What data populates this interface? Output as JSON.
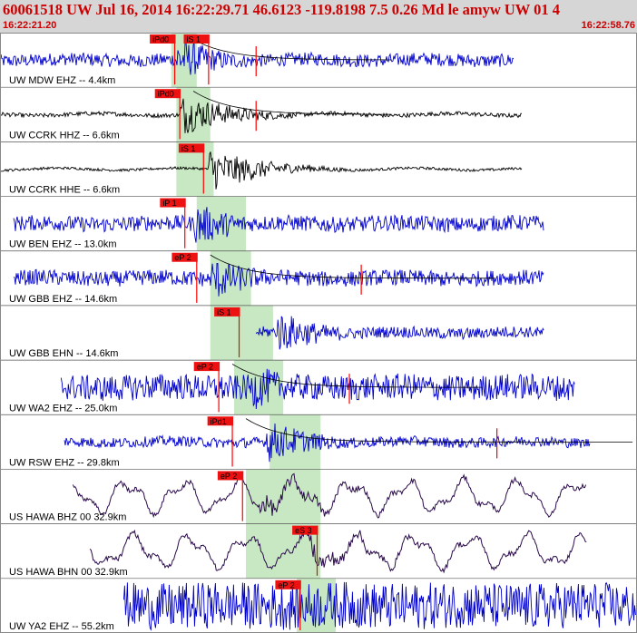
{
  "header": {
    "title": "60061518 UW Jul 16, 2014 16:22:29.71   46.6123 -119.8198  7.5 0.26 Md le amyw UW 01   4",
    "time_start": "16:22:21.20",
    "time_end": "16:22:58.76"
  },
  "colors": {
    "header_bg": "#d6d6d6",
    "header_text": "#cc0000",
    "trace_blue": "#0000cc",
    "trace_black": "#000000",
    "trace_purple": "#2a0a4a",
    "pick_red": "#ff0000",
    "pick_box": "#ee1111",
    "pick_text": "#000000",
    "window_green": "#c7e8c2",
    "coda_curve": "#000000",
    "separator": "#555555"
  },
  "chart_data": {
    "type": "line",
    "x_range_seconds": [
      21.2,
      58.76
    ],
    "time_labels": [
      "16:22:21.20",
      "16:22:58.76"
    ],
    "traces": [
      {
        "label": "UW MDW EHZ -- 4.4km",
        "color": "blue",
        "start": 21.2,
        "end": 51.5,
        "amp": 0.25,
        "onset": 31.5,
        "peak": 0.9,
        "style": "hf",
        "picks": [
          {
            "text": "iPd0",
            "time": 31.5
          },
          {
            "text": "iS 1",
            "time": 33.5
          }
        ],
        "green": [
          31.3,
          32.8
        ],
        "coda": true,
        "coda_end": 36.3
      },
      {
        "label": "UW CCRK HHZ -- 6.6km",
        "color": "black",
        "start": 21.2,
        "end": 52.0,
        "amp": 0.08,
        "onset": 31.8,
        "peak": 0.85,
        "style": "hf",
        "picks": [
          {
            "text": "iPd0",
            "time": 31.8
          }
        ],
        "green": [
          31.6,
          33.6
        ],
        "coda": true,
        "coda_end": 36.3
      },
      {
        "label": "UW CCRK HHE -- 6.6km",
        "color": "black",
        "start": 21.2,
        "end": 52.0,
        "amp": 0.05,
        "onset": 33.5,
        "peak": 0.9,
        "style": "hf",
        "picks": [
          {
            "text": "iS 1",
            "time": 33.2
          }
        ],
        "green": [
          31.6,
          33.8
        ],
        "coda": false
      },
      {
        "label": "UW BEN EHZ -- 13.0km",
        "color": "blue",
        "start": 22.0,
        "end": 53.3,
        "amp": 0.3,
        "onset": 32.7,
        "peak": 0.85,
        "style": "hf",
        "picks": [
          {
            "text": "iP 1",
            "time": 32.1
          }
        ],
        "green": [
          32.8,
          35.7
        ],
        "coda": false
      },
      {
        "label": "UW GBB EHZ -- 14.6km",
        "color": "blue",
        "start": 22.0,
        "end": 53.3,
        "amp": 0.3,
        "onset": 33.7,
        "peak": 0.85,
        "style": "hf",
        "picks": [
          {
            "text": "eP 2",
            "time": 32.8
          }
        ],
        "green": [
          33.6,
          36.0
        ],
        "coda": true,
        "coda_end": 42.5
      },
      {
        "label": "UW GBB EHN -- 14.6km",
        "color": "blue",
        "start": 36.3,
        "end": 53.3,
        "amp": 0.22,
        "onset": 37.5,
        "peak": 0.85,
        "style": "hf",
        "picks": [
          {
            "text": "iS 1",
            "time": 35.3
          }
        ],
        "green": [
          33.6,
          37.3
        ],
        "coda": false
      },
      {
        "label": "UW WA2 EHZ -- 25.0km",
        "color": "blue",
        "start": 24.8,
        "end": 55.1,
        "amp": 0.5,
        "onset": 36.1,
        "peak": 0.9,
        "style": "hf",
        "picks": [
          {
            "text": "eP 2",
            "time": 34.1
          }
        ],
        "green": [
          35.0,
          37.9
        ],
        "coda": true,
        "coda_end": 41.8
      },
      {
        "label": "UW RSW EHZ -- 29.8km",
        "color": "blue",
        "start": 25.0,
        "end": 56.0,
        "amp": 0.2,
        "onset": 36.9,
        "peak": 0.85,
        "style": "hf",
        "picks": [
          {
            "text": "iPd1",
            "time": 34.9
          }
        ],
        "green": [
          37.1,
          40.1
        ],
        "coda": true,
        "coda_end": 50.5
      },
      {
        "label": "US HAWA BHZ 00 32.9km",
        "color": "purple",
        "start": 25.5,
        "end": 55.8,
        "amp": 0.55,
        "onset": 36.5,
        "peak": 0.5,
        "style": "lp",
        "picks": [
          {
            "text": "eP 2",
            "time": 35.5
          }
        ],
        "green": [
          35.7,
          40.1
        ],
        "coda": false
      },
      {
        "label": "US HAWA BHN 00 32.9km",
        "color": "purple",
        "start": 26.5,
        "end": 55.8,
        "amp": 0.55,
        "onset": 39.5,
        "peak": 0.5,
        "style": "lp",
        "picks": [
          {
            "text": "eS 3",
            "time": 39.9
          }
        ],
        "green": [
          35.7,
          40.1
        ],
        "coda": false
      },
      {
        "label": "UW YA2 EHZ -- 55.2km",
        "color": "blue",
        "start": 28.5,
        "end": 58.76,
        "amp": 0.9,
        "onset": 38.9,
        "peak": 0.95,
        "style": "hf",
        "picks": [
          {
            "text": "eP 2",
            "time": 38.9
          }
        ],
        "green": [
          38.7,
          41.0
        ],
        "coda": false
      }
    ]
  }
}
